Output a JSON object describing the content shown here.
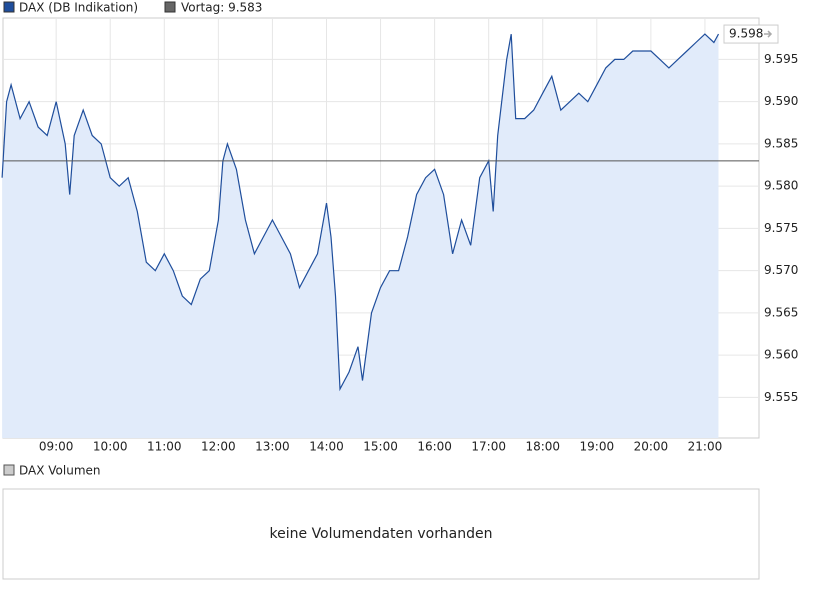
{
  "chart_data": {
    "type": "area",
    "series": [
      {
        "name": "DAX (DB Indikation)",
        "color": "#1f4e9c",
        "fill": "#e1ebfa",
        "values": [
          9581,
          9590,
          9592,
          9588,
          9590,
          9587,
          9586,
          9590,
          9585,
          9579,
          9586,
          9589,
          9586,
          9585,
          9581,
          9580,
          9581,
          9577,
          9571,
          9570,
          9572,
          9570,
          9567,
          9566,
          9569,
          9570,
          9576,
          9583,
          9585,
          9582,
          9576,
          9572,
          9574,
          9576,
          9574,
          9572,
          9568,
          9570,
          9572,
          9578,
          9574,
          9567,
          9556,
          9558,
          9561,
          9557,
          9565,
          9568,
          9570,
          9570,
          9574,
          9579,
          9581,
          9582,
          9579,
          9572,
          9576,
          9573,
          9581,
          9583,
          9577,
          9586,
          9595,
          9598,
          9588,
          9588,
          9589,
          9591,
          9593,
          9589,
          9590,
          9591,
          9590,
          9592,
          9594,
          9595,
          9595,
          9596,
          9596,
          9596,
          9595,
          9594,
          9595,
          9596,
          9597,
          9598,
          9597,
          9598
        ]
      }
    ],
    "x": [
      "08:00",
      "08:05",
      "08:10",
      "08:20",
      "08:30",
      "08:40",
      "08:50",
      "09:00",
      "09:10",
      "09:15",
      "09:20",
      "09:30",
      "09:40",
      "09:50",
      "10:00",
      "10:10",
      "10:20",
      "10:30",
      "10:40",
      "10:50",
      "11:00",
      "11:10",
      "11:20",
      "11:30",
      "11:40",
      "11:50",
      "12:00",
      "12:05",
      "12:10",
      "12:20",
      "12:30",
      "12:40",
      "12:50",
      "13:00",
      "13:10",
      "13:20",
      "13:30",
      "13:40",
      "13:50",
      "14:00",
      "14:05",
      "14:10",
      "14:15",
      "14:25",
      "14:35",
      "14:40",
      "14:50",
      "15:00",
      "15:10",
      "15:20",
      "15:30",
      "15:40",
      "15:50",
      "16:00",
      "16:10",
      "16:20",
      "16:30",
      "16:40",
      "16:50",
      "17:00",
      "17:05",
      "17:10",
      "17:20",
      "17:25",
      "17:30",
      "17:40",
      "17:50",
      "18:00",
      "18:10",
      "18:20",
      "18:30",
      "18:40",
      "18:50",
      "19:00",
      "19:10",
      "19:20",
      "19:30",
      "19:40",
      "19:50",
      "20:00",
      "20:10",
      "20:20",
      "20:30",
      "20:40",
      "20:50",
      "21:00",
      "21:10",
      "21:15"
    ],
    "xlim": [
      "08:01",
      "22:00"
    ],
    "xticks": [
      "09:00",
      "10:00",
      "11:00",
      "12:00",
      "13:00",
      "14:00",
      "15:00",
      "16:00",
      "17:00",
      "18:00",
      "19:00",
      "20:00",
      "21:00"
    ],
    "ylim": [
      9550.2,
      9599.9
    ],
    "yticks": [
      {
        "value": 9555,
        "label": "9.555"
      },
      {
        "value": 9560,
        "label": "9.560"
      },
      {
        "value": 9565,
        "label": "9.565"
      },
      {
        "value": 9570,
        "label": "9.570"
      },
      {
        "value": 9575,
        "label": "9.575"
      },
      {
        "value": 9580,
        "label": "9.580"
      },
      {
        "value": 9585,
        "label": "9.585"
      },
      {
        "value": 9590,
        "label": "9.590"
      },
      {
        "value": 9595,
        "label": "9.595"
      }
    ],
    "reference": {
      "value": 9583,
      "label": "Vortag: 9.583",
      "color": "#555555"
    },
    "last_value": {
      "value": 9598,
      "label": "9.598"
    },
    "grid": true,
    "volume": {
      "title": "DAX Volumen",
      "message": "keine Volumendaten vorhanden"
    }
  }
}
